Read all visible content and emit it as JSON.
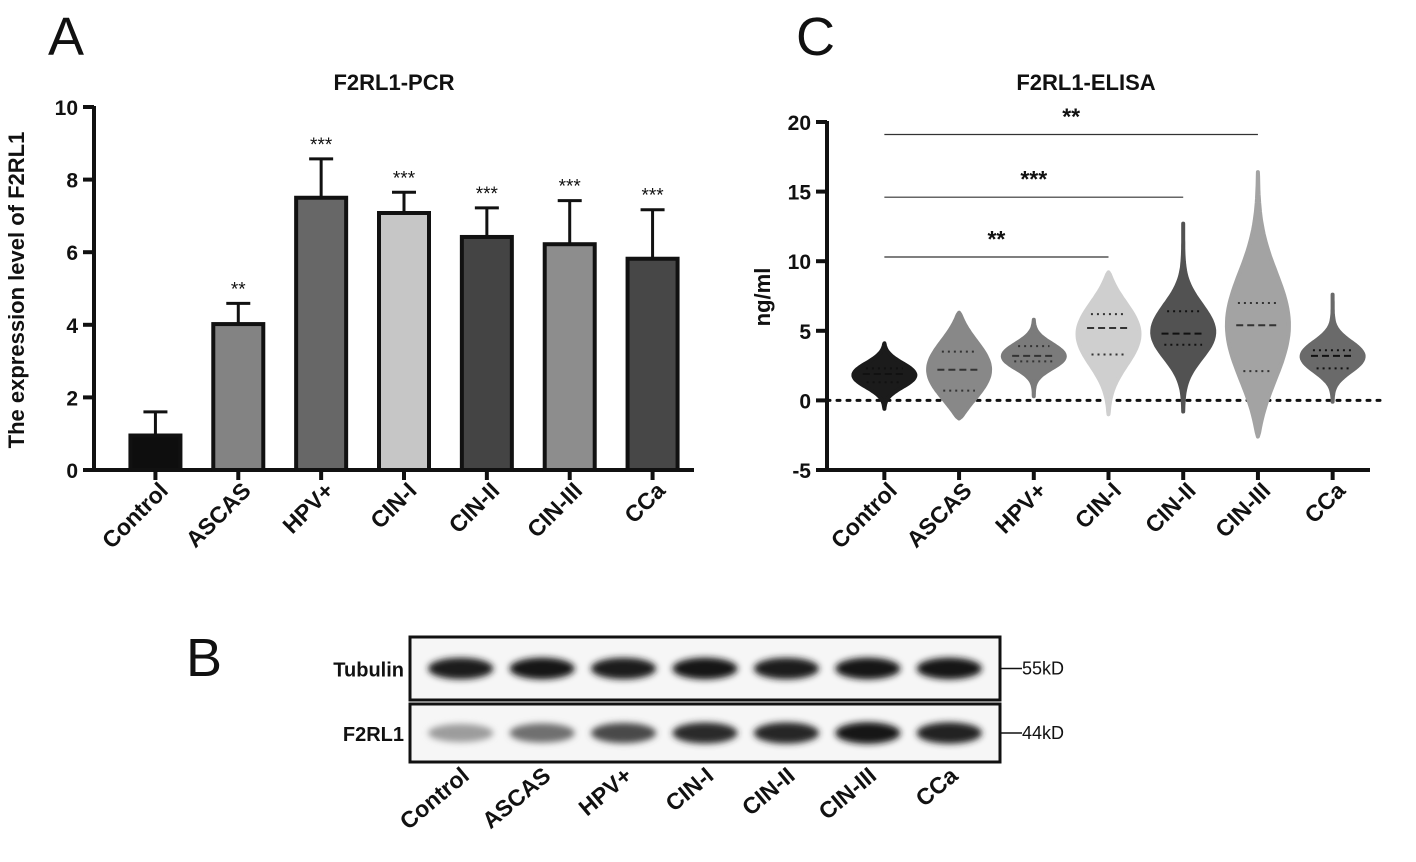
{
  "chart_data": [
    {
      "panel": "A",
      "type": "bar",
      "title": "F2RL1-PCR",
      "ylabel": "The expression level of F2RL1",
      "xlabel": "",
      "ylim": [
        0,
        10
      ],
      "yticks": [
        0,
        2,
        4,
        6,
        8,
        10
      ],
      "categories": [
        "Control",
        "ASCAS",
        "HPV+",
        "CIN-I",
        "CIN-II",
        "CIN-III",
        "CCa"
      ],
      "values": [
        0.95,
        4.02,
        7.5,
        7.08,
        6.42,
        6.22,
        5.82
      ],
      "errors": [
        0.65,
        0.57,
        1.07,
        0.57,
        0.8,
        1.2,
        1.35
      ],
      "significance": [
        "",
        "**",
        "***",
        "***",
        "***",
        "***",
        "***"
      ],
      "colors": [
        "#0e0e0e",
        "#838383",
        "#676767",
        "#c6c6c6",
        "#444444",
        "#8d8d8d",
        "#474747"
      ],
      "grid": false
    },
    {
      "panel": "C",
      "type": "violin",
      "title": "F2RL1-ELISA",
      "ylabel": "ng/ml",
      "xlabel": "",
      "ylim": [
        -5,
        20
      ],
      "yticks": [
        -5,
        0,
        5,
        10,
        15,
        20
      ],
      "categories": [
        "Control",
        "ASCAS",
        "HPV+",
        "CIN-I",
        "CIN-II",
        "CIN-III",
        "CCa"
      ],
      "medians": [
        1.9,
        2.2,
        3.2,
        5.2,
        4.8,
        5.4,
        3.2
      ],
      "q1": [
        1.3,
        0.7,
        2.8,
        3.3,
        4.0,
        2.1,
        2.3
      ],
      "q3": [
        2.3,
        3.5,
        3.9,
        6.2,
        6.4,
        7.0,
        3.6
      ],
      "min": [
        -0.6,
        -1.3,
        0.3,
        -1.0,
        -0.8,
        -2.6,
        -0.1
      ],
      "max": [
        4.1,
        6.3,
        5.8,
        9.2,
        12.7,
        16.4,
        7.6
      ],
      "colors": [
        "#1b1b1b",
        "#888888",
        "#7b7b7b",
        "#cfcfcf",
        "#525252",
        "#a3a3a3",
        "#6a6a6a"
      ],
      "comparisons": [
        {
          "from": "Control",
          "to": "CIN-I",
          "label": "**",
          "y": 10.3
        },
        {
          "from": "Control",
          "to": "CIN-II",
          "label": "***",
          "y": 14.6
        },
        {
          "from": "Control",
          "to": "CIN-III",
          "label": "**",
          "y": 19.1
        }
      ],
      "reference_line": 0,
      "grid": false
    },
    {
      "panel": "B",
      "type": "western-blot",
      "rows": [
        {
          "label": "Tubulin",
          "marker": "55kD",
          "intensity": [
            0.92,
            0.95,
            0.93,
            0.95,
            0.93,
            0.94,
            0.94
          ]
        },
        {
          "label": "F2RL1",
          "marker": "44kD",
          "intensity": [
            0.35,
            0.55,
            0.72,
            0.85,
            0.88,
            0.95,
            0.9
          ]
        }
      ],
      "categories": [
        "Control",
        "ASCAS",
        "HPV+",
        "CIN-I",
        "CIN-II",
        "CIN-III",
        "CCa"
      ]
    }
  ],
  "panel_letters": [
    "A",
    "C",
    "B"
  ]
}
